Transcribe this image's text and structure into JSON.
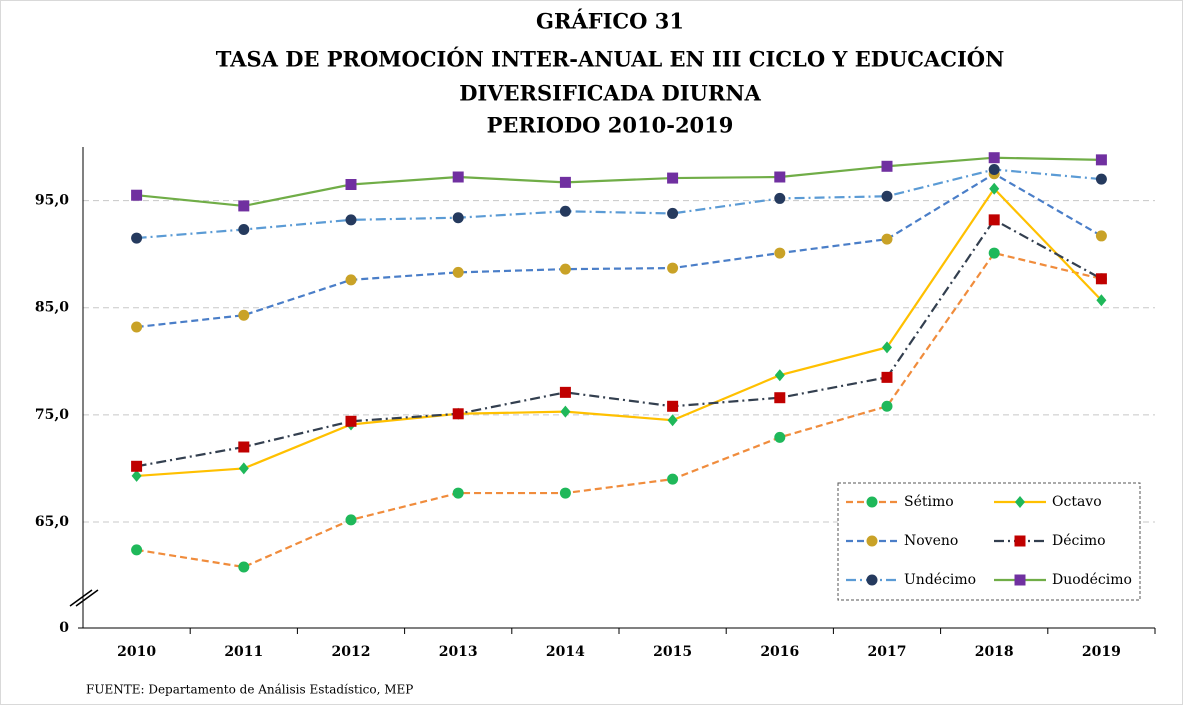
{
  "chart_data": {
    "type": "line",
    "title": [
      "GRÁFICO 31",
      "TASA DE PROMOCIÓN INTER-ANUAL EN III CICLO Y EDUCACIÓN",
      "DIVERSIFICADA DIURNA",
      "PERIODO 2010-2019"
    ],
    "source": "FUENTE: Departamento de Análisis Estadístico, MEP",
    "categories": [
      "2010",
      "2011",
      "2012",
      "2013",
      "2014",
      "2015",
      "2016",
      "2017",
      "2018",
      "2019"
    ],
    "ylim": [
      0,
      100
    ],
    "axis_break": [
      0,
      58
    ],
    "yticks": [
      0,
      {
        "value": 65,
        "label": "65,0"
      },
      {
        "value": 75,
        "label": "75,0"
      },
      {
        "value": 85,
        "label": "85,0"
      },
      {
        "value": 95,
        "label": "95,0"
      }
    ],
    "grid": true,
    "legend": "lower right",
    "series": [
      {
        "name": "Sétimo",
        "color": "#f08c3c",
        "marker": "circle",
        "marker_color": "#1fb85a",
        "dash": "dash",
        "values": [
          62.4,
          60.8,
          65.2,
          67.7,
          67.7,
          69.0,
          72.9,
          75.8,
          90.1,
          87.7
        ]
      },
      {
        "name": "Octavo",
        "color": "#ffc000",
        "marker": "diamond",
        "marker_color": "#1fb85a",
        "dash": "solid",
        "values": [
          69.3,
          70.0,
          74.1,
          75.1,
          75.3,
          74.5,
          78.7,
          81.3,
          96.1,
          85.7
        ]
      },
      {
        "name": "Noveno",
        "color": "#4a7ec8",
        "marker": "circle",
        "marker_color": "#c9a227",
        "dash": "dash",
        "values": [
          83.2,
          84.3,
          87.6,
          88.3,
          88.6,
          88.7,
          90.1,
          91.4,
          97.5,
          91.7
        ]
      },
      {
        "name": "Décimo",
        "color": "#333f4f",
        "marker": "square",
        "marker_color": "#c00000",
        "dash": "dashdot",
        "values": [
          70.2,
          72.0,
          74.4,
          75.1,
          77.1,
          75.8,
          76.6,
          78.5,
          93.2,
          87.7
        ]
      },
      {
        "name": "Undécimo",
        "color": "#5b9bd5",
        "marker": "circle",
        "marker_color": "#253a5e",
        "dash": "dashdot",
        "values": [
          91.5,
          92.3,
          93.2,
          93.4,
          94.0,
          93.8,
          95.2,
          95.4,
          97.9,
          97.0
        ]
      },
      {
        "name": "Duodécimo",
        "color": "#70ad47",
        "marker": "square",
        "marker_color": "#7030a0",
        "dash": "solid",
        "values": [
          95.5,
          94.5,
          96.5,
          97.2,
          96.7,
          97.1,
          97.2,
          98.2,
          99.0,
          98.8
        ]
      }
    ]
  }
}
